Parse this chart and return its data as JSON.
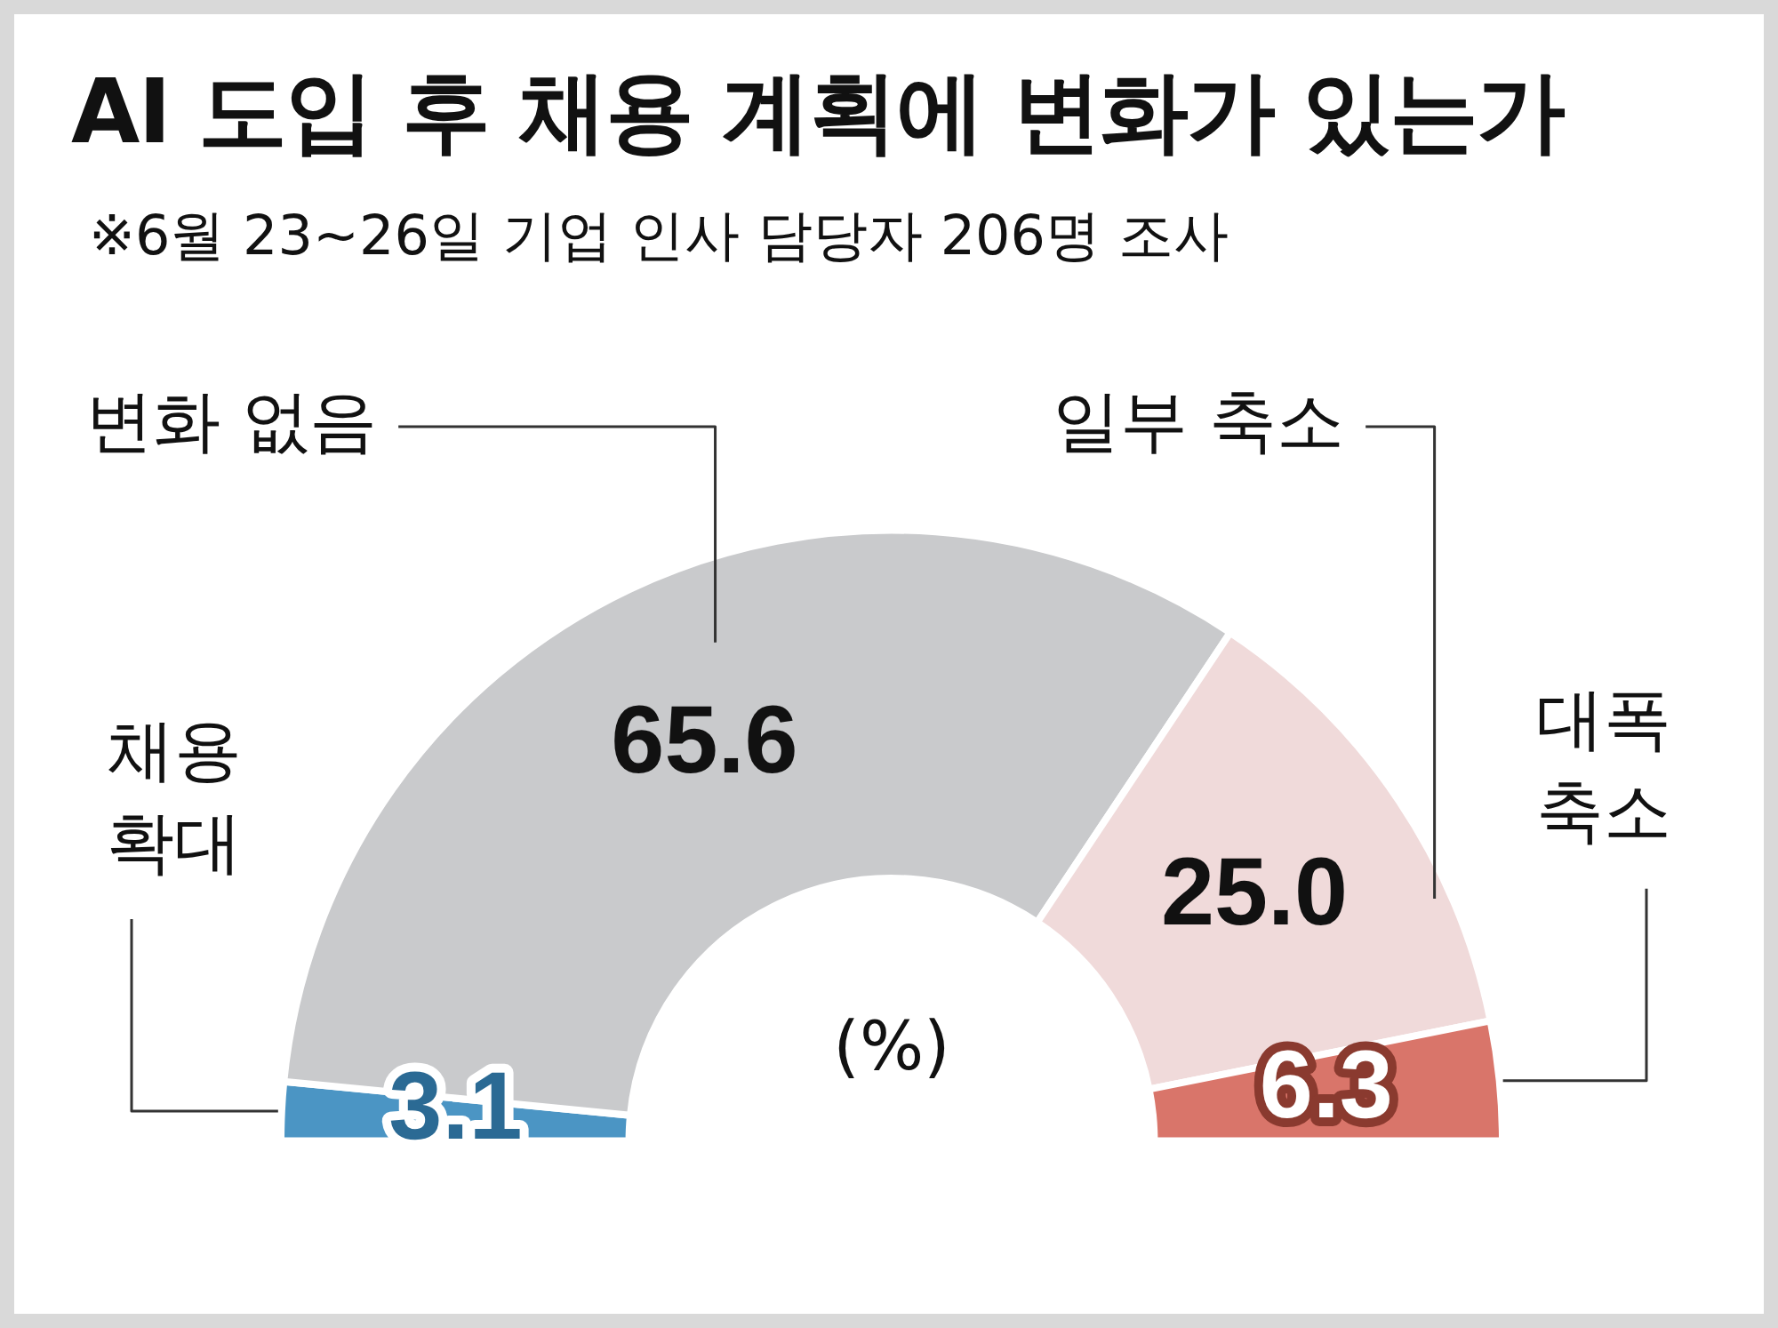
{
  "chart_data": {
    "type": "donut",
    "title": "AI 도입 후 채용 계획에 변화가 있는가",
    "subtitle": "※6월 23~26일 기업 인사 담당자 206명 조사",
    "categories": [
      "채용 확대",
      "변화 없음",
      "일부 축소",
      "대폭 축소"
    ],
    "values": [
      3.1,
      65.6,
      25.0,
      6.3
    ],
    "value_labels": [
      "3.1",
      "65.6",
      "25.0",
      "6.3"
    ],
    "colors": [
      "#4b95c4",
      "#c9cacc",
      "#f0dada",
      "#d9756a"
    ],
    "annotations": [
      "(%)"
    ],
    "legend": false
  }
}
